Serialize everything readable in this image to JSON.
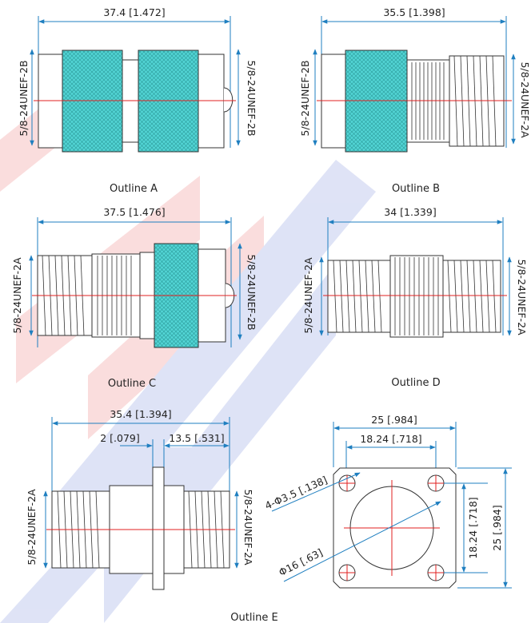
{
  "outlines": {
    "A": {
      "caption": "Outline A",
      "length": "37.4 [1.472]",
      "left_thread": "5/8-24UNEF-2B",
      "right_thread": "5/8-24UNEF-2B"
    },
    "B": {
      "caption": "Outline B",
      "length": "35.5 [1.398]",
      "left_thread": "5/8-24UNEF-2B",
      "right_thread": "5/8-24UNEF-2A"
    },
    "C": {
      "caption": "Outline C",
      "length": "37.5 [1.476]",
      "left_thread": "5/8-24UNEF-2A",
      "right_thread": "5/8-24UNEF-2B"
    },
    "D": {
      "caption": "Outline D",
      "length": "34 [1.339]",
      "left_thread": "5/8-24UNEF-2A",
      "right_thread": "5/8-24UNEF-2A"
    },
    "E": {
      "caption": "Outline E",
      "length": "35.4 [1.394]",
      "flange_thickness": "2 [.079]",
      "flange_offset": "13.5 [.531]",
      "left_thread": "5/8-24UNEF-2A",
      "right_thread": "5/8-24UNEF-2A",
      "flange": {
        "width": "25 [.984]",
        "hole_spacing_h": "18.24 [.718]",
        "hole_spacing_v": "18.24 [.718]",
        "height": "25 [.984]",
        "holes": "4-Φ3.5 [.138]",
        "bore": "Φ16 [.63]"
      }
    }
  },
  "colors": {
    "dimension_line": "#1f7fc0",
    "centerline": "#e02020",
    "knurl": "#52d4d4",
    "watermark_red": "#f4b4b4",
    "watermark_blue": "#b8c2ec"
  }
}
